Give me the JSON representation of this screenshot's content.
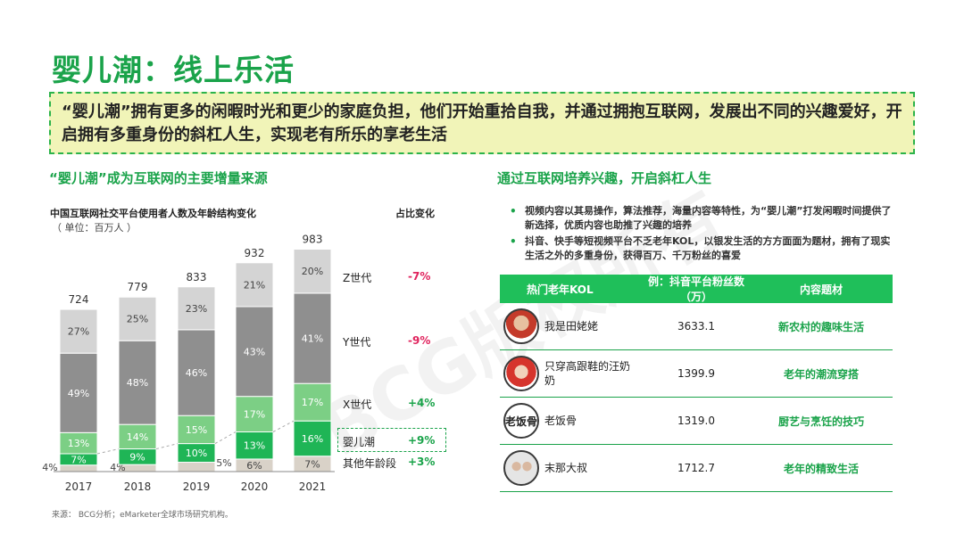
{
  "page": {
    "title": "婴儿潮：线上乐活",
    "callout": "“婴儿潮”拥有更多的闲暇时光和更少的家庭负担，他们开始重拾自我，并通过拥抱互联网，发展出不同的兴趣爱好，开启拥有多重身份的斜杠人生，实现老有所乐的享老生活",
    "left_heading": "“婴儿潮”成为互联网的主要增量来源",
    "right_heading": "通过互联网培养兴趣，开启斜杠人生",
    "source": "来源： BCG分析；eMarketer全球市场研究机构。",
    "watermark": "BCG版权所有"
  },
  "chart_data": {
    "type": "bar",
    "title": "中国互联网社交平台使用者人数及年龄结构变化",
    "unit": "（ 单位：百万人 ）",
    "change_heading": "占比变化",
    "categories": [
      "2017",
      "2018",
      "2019",
      "2020",
      "2021"
    ],
    "totals": [
      724,
      779,
      833,
      932,
      983
    ],
    "series": [
      {
        "name": "其他年龄段",
        "values": [
          4,
          4,
          5,
          6,
          7
        ],
        "labels": [
          "4%",
          "4%",
          "5%",
          "6%",
          "7%"
        ],
        "color": "#d9d2c8",
        "change": "+3%",
        "change_color": "#1aa34a"
      },
      {
        "name": "婴儿潮",
        "values": [
          7,
          9,
          10,
          13,
          16
        ],
        "labels": [
          "7%",
          "9%",
          "10%",
          "13%",
          "16%"
        ],
        "color": "#1fb556",
        "change": "+9%",
        "change_color": "#1aa34a"
      },
      {
        "name": "X世代",
        "values": [
          13,
          14,
          15,
          17,
          17
        ],
        "labels": [
          "13%",
          "14%",
          "15%",
          "17%",
          "17%"
        ],
        "color": "#7ccf85",
        "change": "+4%",
        "change_color": "#1aa34a"
      },
      {
        "name": "Y世代",
        "values": [
          49,
          48,
          46,
          43,
          41
        ],
        "labels": [
          "49%",
          "48%",
          "46%",
          "43%",
          "41%"
        ],
        "color": "#8f8f8f",
        "change": "-9%",
        "change_color": "#e0245e"
      },
      {
        "name": "Z世代",
        "values": [
          27,
          25,
          23,
          21,
          20
        ],
        "labels": [
          "27%",
          "25%",
          "23%",
          "21%",
          "20%"
        ],
        "color": "#d4d4d4",
        "change": "-7%",
        "change_color": "#e0245e"
      }
    ]
  },
  "bullets": [
    "视频内容以其易操作，算法推荐，海量内容等特性，为“婴儿潮”打发闲暇时间提供了新选择，优质内容也助推了兴趣的培养",
    "抖音、快手等短视频平台不乏老年KOL，以银发生活的方方面面为题材，拥有了现实生活之外的多重身份，获得百万、千万粉丝的喜爱"
  ],
  "kol_table": {
    "headers": [
      "热门老年KOL",
      "例：抖音平台粉丝数（万）",
      "内容题材"
    ],
    "rows": [
      {
        "name": "我是田姥姥",
        "fans": "3633.1",
        "topic": "新农村的趣味生活",
        "avatar_text": ""
      },
      {
        "name": "只穿高跟鞋的汪奶奶",
        "fans": "1399.9",
        "topic": "老年的潮流穿搭",
        "avatar_text": ""
      },
      {
        "name": "老饭骨",
        "fans": "1319.0",
        "topic": "厨艺与烹饪的技巧",
        "avatar_text": "老饭骨"
      },
      {
        "name": "末那大叔",
        "fans": "1712.7",
        "topic": "老年的精致生活",
        "avatar_text": ""
      }
    ]
  },
  "colors": {
    "accent": "#1aa34a",
    "callout_bg": "#f1f4b8",
    "negative": "#e0245e"
  }
}
